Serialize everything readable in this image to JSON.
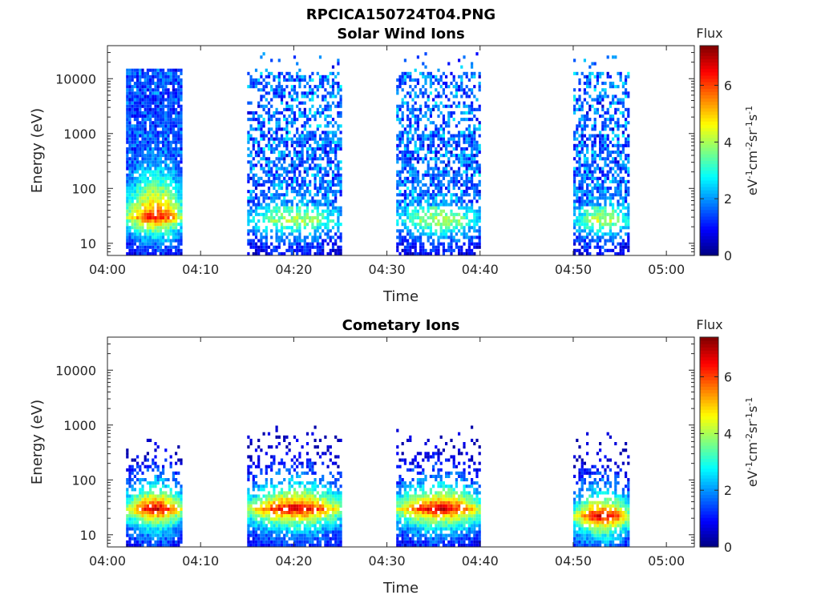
{
  "figure": {
    "title": "RPCICA150724T04.PNG"
  },
  "chart_data": [
    {
      "type": "heatmap",
      "title": "Solar Wind Ions",
      "xlabel": "Time",
      "ylabel": "Energy (eV)",
      "xlim": [
        "04:00",
        "05:03"
      ],
      "ylim": [
        6,
        40000
      ],
      "yscale": "log",
      "xticks": [
        "04:00",
        "04:10",
        "04:20",
        "04:30",
        "04:40",
        "04:50",
        "05:00"
      ],
      "yticks": [
        "10",
        "100",
        "1000",
        "10000"
      ],
      "colorbar": {
        "label": "Flux",
        "unit": "eV-1cm-2sr-1s-1",
        "range": [
          0,
          7.4
        ],
        "ticks": [
          "0",
          "2",
          "4",
          "6"
        ],
        "colormap": "jet"
      },
      "regions": [
        {
          "t_start": "04:02",
          "t_end": "04:08",
          "e_min": 6,
          "e_max": 16000,
          "peak_flux": 6.5,
          "peak_energy": 30,
          "core": "dense"
        },
        {
          "t_start": "04:15",
          "t_end": "04:25",
          "e_min": 6,
          "e_max": 30000,
          "peak_flux": 4.2,
          "peak_energy": 25,
          "core": "sparse"
        },
        {
          "t_start": "04:31",
          "t_end": "04:40",
          "e_min": 6,
          "e_max": 30000,
          "peak_flux": 4.2,
          "peak_energy": 25,
          "core": "sparse"
        },
        {
          "t_start": "04:50",
          "t_end": "04:56",
          "e_min": 6,
          "e_max": 30000,
          "peak_flux": 4.3,
          "peak_energy": 25,
          "core": "sparse"
        }
      ]
    },
    {
      "type": "heatmap",
      "title": "Cometary Ions",
      "xlabel": "Time",
      "ylabel": "Energy (eV)",
      "xlim": [
        "04:00",
        "05:03"
      ],
      "ylim": [
        6,
        40000
      ],
      "yscale": "log",
      "xticks": [
        "04:00",
        "04:10",
        "04:20",
        "04:30",
        "04:40",
        "04:50",
        "05:00"
      ],
      "yticks": [
        "10",
        "100",
        "1000",
        "10000"
      ],
      "colorbar": {
        "label": "Flux",
        "unit": "eV-1cm-2sr-1s-1",
        "range": [
          0,
          7.4
        ],
        "ticks": [
          "0",
          "2",
          "4",
          "6"
        ],
        "colormap": "jet"
      },
      "regions": [
        {
          "t_start": "04:02",
          "t_end": "04:08",
          "e_min": 6,
          "e_max": 600,
          "peak_flux": 7.0,
          "peak_energy": 30,
          "core": "dense"
        },
        {
          "t_start": "04:15",
          "t_end": "04:25",
          "e_min": 6,
          "e_max": 1300,
          "peak_flux": 7.0,
          "peak_energy": 30,
          "core": "dense"
        },
        {
          "t_start": "04:31",
          "t_end": "04:40",
          "e_min": 6,
          "e_max": 1300,
          "peak_flux": 7.0,
          "peak_energy": 30,
          "core": "dense"
        },
        {
          "t_start": "04:50",
          "t_end": "04:56",
          "e_min": 6,
          "e_max": 1100,
          "peak_flux": 7.0,
          "peak_energy": 22,
          "core": "dense"
        }
      ]
    }
  ]
}
